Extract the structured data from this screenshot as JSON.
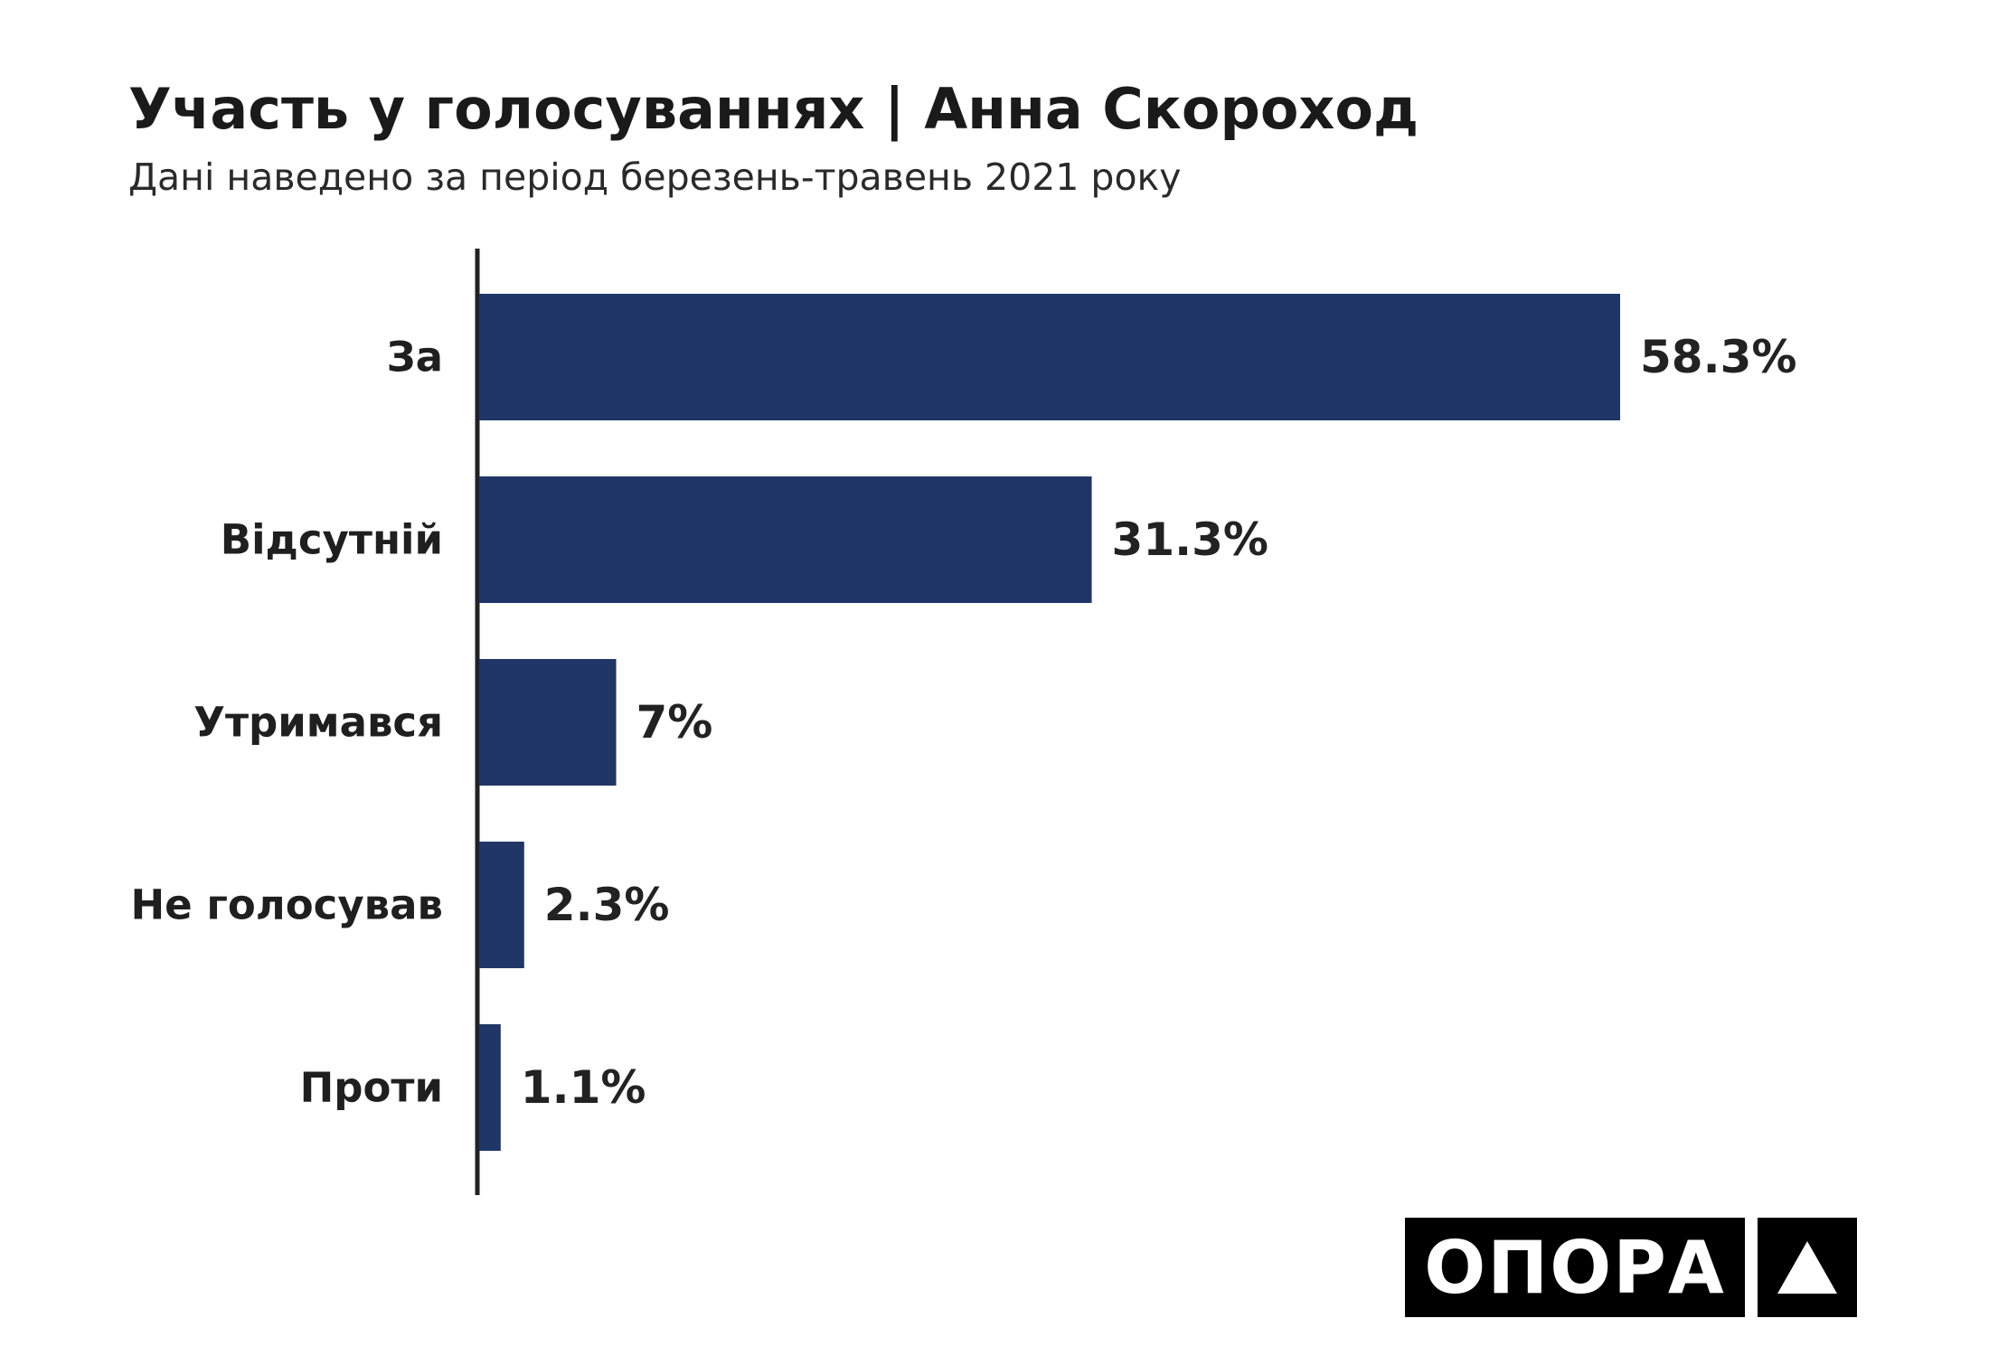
{
  "chart_data": {
    "type": "bar",
    "orientation": "horizontal",
    "title": "Участь у голосуваннях | Анна Скороход",
    "subtitle": "Дані наведено за період березень-травень 2021 року",
    "categories": [
      "За",
      "Відсутній",
      "Утримався",
      "Не голосував",
      "Проти"
    ],
    "values": [
      58.3,
      31.3,
      7,
      2.3,
      1.1
    ],
    "value_labels": [
      "58.3%",
      "31.3%",
      "7%",
      "2.3%",
      "1.1%"
    ],
    "unit": "%",
    "bar_color": "#1f3666",
    "grid": false,
    "legend": "none"
  },
  "logo": {
    "text": "ОПОРА",
    "mark": "triangle-icon"
  }
}
